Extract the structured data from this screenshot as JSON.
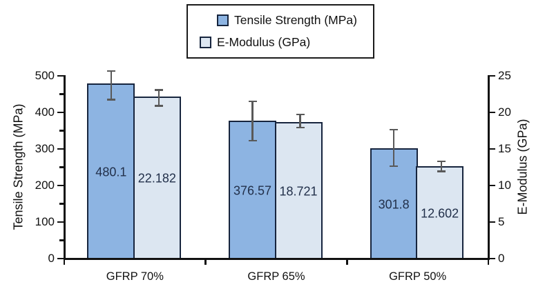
{
  "chart_data": {
    "type": "bar",
    "title": "",
    "categories": [
      "GFRP 70%",
      "GFRP 65%",
      "GFRP 50%"
    ],
    "series": [
      {
        "name": "Tensile Strength (MPa)",
        "axis": "left",
        "color": "#8DB4E2",
        "values": [
          480.1,
          376.57,
          301.8
        ],
        "labels": [
          "480.1",
          "376.57",
          "301.8"
        ],
        "error_plus": [
          35,
          56,
          53
        ],
        "error_minus": [
          48,
          56,
          51
        ]
      },
      {
        "name": "E-Modulus (GPa)",
        "axis": "right",
        "color": "#DCE6F1",
        "values": [
          22.182,
          18.721,
          12.602
        ],
        "labels": [
          "22.182",
          "18.721",
          "12.602"
        ],
        "error_plus": [
          1.0,
          1.1,
          0.8
        ],
        "error_minus": [
          1.4,
          0.9,
          0.8
        ]
      }
    ],
    "left_axis": {
      "title": "Tensile Strength (MPa)",
      "min": 0,
      "max": 500,
      "major_step": 100,
      "minor_step": 50,
      "tick_labels": [
        "0",
        "100",
        "200",
        "300",
        "400",
        "500"
      ]
    },
    "right_axis": {
      "title": "E-Modulus (GPa)",
      "min": 0,
      "max": 25,
      "major_step": 5,
      "tick_labels": [
        "0",
        "5",
        "10",
        "15",
        "20",
        "25"
      ]
    },
    "legend": {
      "position": "top",
      "entries": [
        "Tensile Strength (MPa)",
        "E-Modulus (GPa)"
      ]
    },
    "grid": "off",
    "colors": {
      "bar_tensile": "#8DB4E2",
      "bar_emodulus": "#DCE6F1",
      "bar_border": "#16243D",
      "axis": "#111111",
      "error_bar": "#595959",
      "data_label": "#22304A"
    }
  }
}
